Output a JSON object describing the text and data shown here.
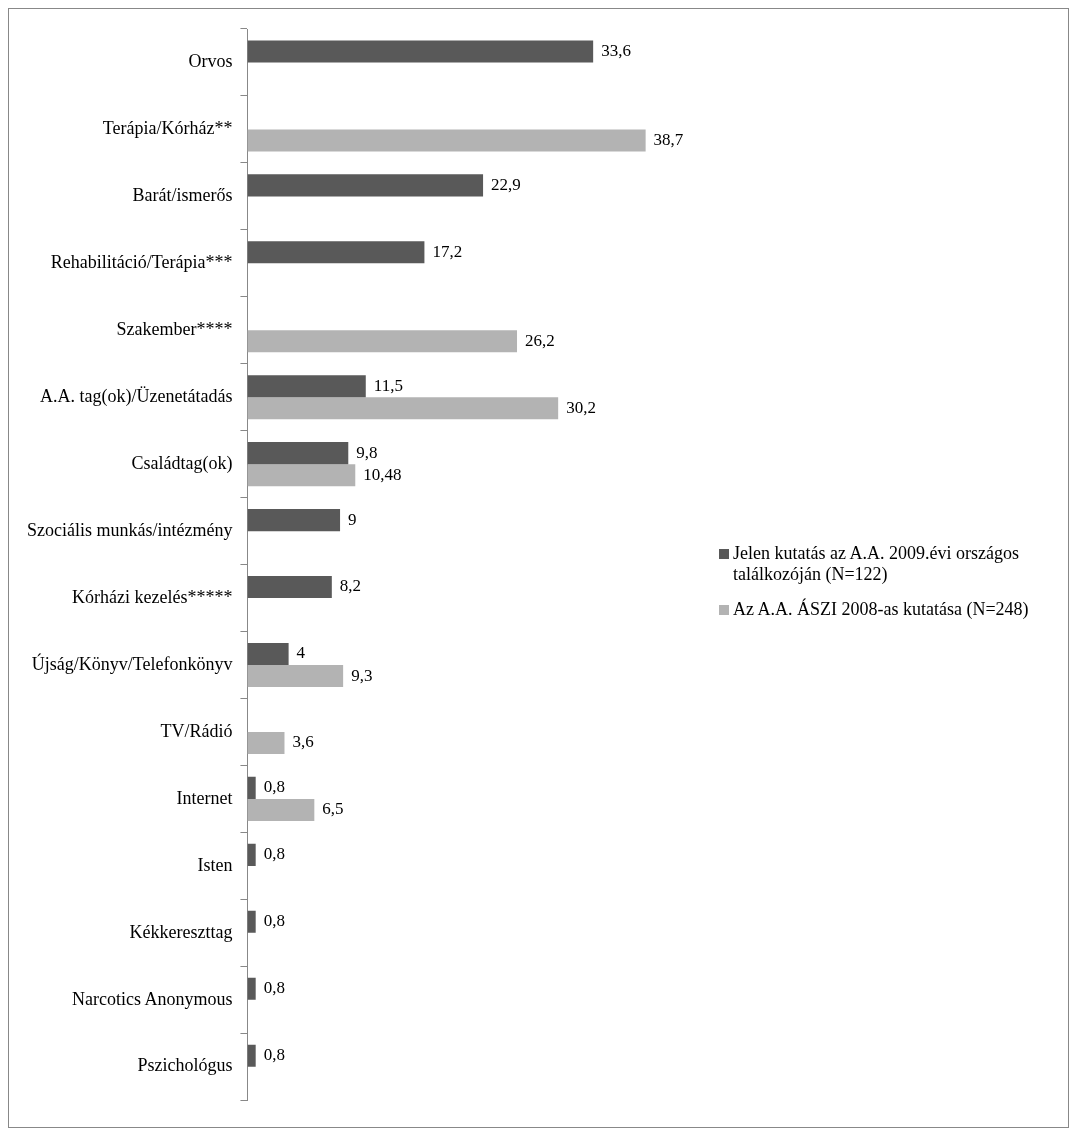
{
  "chart_data": {
    "type": "bar",
    "orientation": "horizontal",
    "legend": "right",
    "categories": [
      "Orvos",
      "Terápia/Kórház**",
      "Barát/ismerős",
      "Rehabilitáció/Terápia***",
      "Szakember****",
      "A.A. tag(ok)/Üzenetátadás",
      "Családtag(ok)",
      "Szociális munkás/intézmény",
      "Kórházi kezelés*****",
      "Újság/Könyv/Telefonkönyv",
      "TV/Rádió",
      "Internet",
      "Isten",
      "Kékkereszttag",
      "Narcotics Anonymous",
      "Pszichológus"
    ],
    "series": [
      {
        "name": "Jelen kutatás az A.A. 2009.évi országos találkozóján (N=122)",
        "color": "#595959",
        "values": [
          33.6,
          null,
          22.9,
          17.2,
          null,
          11.5,
          9.8,
          9,
          8.2,
          4,
          null,
          0.8,
          0.8,
          0.8,
          0.8,
          0.8
        ],
        "value_labels": [
          "33,6",
          null,
          "22,9",
          "17,2",
          null,
          "11,5",
          "9,8",
          "9",
          "8,2",
          "4",
          null,
          "0,8",
          "0,8",
          "0,8",
          "0,8",
          "0,8"
        ]
      },
      {
        "name": "Az A.A. ÁSZI 2008-as kutatása (N=248)",
        "color": "#b3b3b3",
        "values": [
          null,
          38.7,
          null,
          null,
          26.2,
          30.2,
          10.48,
          null,
          null,
          9.3,
          3.6,
          6.5,
          null,
          null,
          null,
          null
        ],
        "value_labels": [
          null,
          "38,7",
          null,
          null,
          "26,2",
          "30,2",
          "10,48",
          null,
          null,
          "9,3",
          "3,6",
          "6,5",
          null,
          null,
          null,
          null
        ]
      }
    ]
  }
}
